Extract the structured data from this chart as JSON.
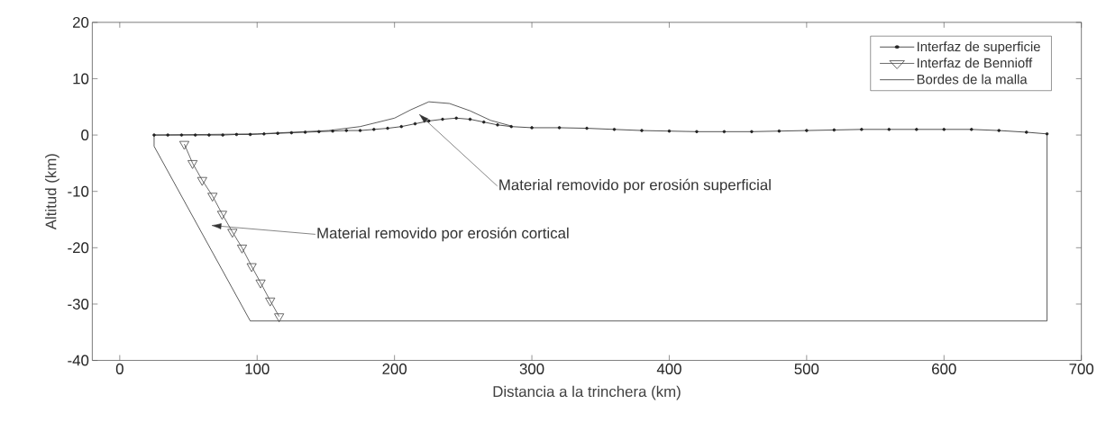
{
  "chart_data": {
    "type": "line",
    "xlabel": "Distancia a la trinchera (km)",
    "ylabel": "Altitud (km)",
    "xlim": [
      -20,
      700
    ],
    "ylim": [
      -40,
      20
    ],
    "xticks": [
      0,
      100,
      200,
      300,
      400,
      500,
      600,
      700
    ],
    "yticks": [
      -40,
      -30,
      -20,
      -10,
      0,
      10,
      20
    ],
    "grid": false,
    "legend": "top right",
    "series": [
      {
        "name": "Interfaz de superficie",
        "color": "#222222",
        "marker": "circle",
        "x": [
          25,
          35,
          45,
          55,
          65,
          75,
          85,
          95,
          105,
          115,
          125,
          135,
          145,
          155,
          165,
          175,
          185,
          195,
          205,
          215,
          225,
          235,
          245,
          255,
          265,
          275,
          285,
          300,
          320,
          340,
          360,
          380,
          400,
          420,
          440,
          460,
          480,
          500,
          520,
          540,
          560,
          580,
          600,
          620,
          640,
          660,
          675
        ],
        "values": [
          0,
          0,
          0,
          0,
          0,
          0,
          0.1,
          0.1,
          0.2,
          0.3,
          0.4,
          0.5,
          0.6,
          0.7,
          0.8,
          0.8,
          1.0,
          1.2,
          1.5,
          2.0,
          2.5,
          2.8,
          3.0,
          2.8,
          2.3,
          1.8,
          1.5,
          1.3,
          1.3,
          1.2,
          1.0,
          0.8,
          0.7,
          0.6,
          0.6,
          0.6,
          0.7,
          0.8,
          0.9,
          1.0,
          1.0,
          1.0,
          1.0,
          1.0,
          0.8,
          0.5,
          0.2
        ]
      },
      {
        "name": "Interfaz de Bennioff",
        "color": "#444444",
        "marker": "triangle",
        "x": [
          47,
          53,
          60,
          67.5,
          74.5,
          82,
          89,
          96,
          102.5,
          109.5,
          116
        ],
        "values": [
          -1.6,
          -5,
          -8,
          -10.8,
          -14,
          -17.2,
          -20,
          -23.3,
          -26.2,
          -29.4,
          -32.2
        ]
      },
      {
        "name": "Bordes de la malla",
        "color": "#333333",
        "marker": "none",
        "x": [
          675,
          675,
          95,
          25,
          25,
          100,
          152,
          175,
          200,
          212,
          225,
          240,
          255,
          270,
          285
        ],
        "values": [
          0.2,
          -33,
          -33,
          -2,
          0,
          0.2,
          0.8,
          1.5,
          3.0,
          4.5,
          5.9,
          5.6,
          4.3,
          2.6,
          1.6
        ]
      }
    ],
    "annotations": [
      "Material removido por erosión superficial",
      "Material removido por erosión cortical"
    ]
  }
}
